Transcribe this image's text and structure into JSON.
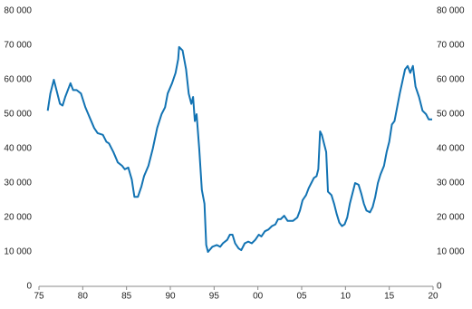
{
  "chart_data": {
    "type": "line",
    "x": [
      1976.0,
      1976.3,
      1976.7,
      1977.0,
      1977.4,
      1977.7,
      1978.0,
      1978.6,
      1978.9,
      1979.3,
      1979.8,
      1980.3,
      1980.8,
      1981.3,
      1981.7,
      1982.3,
      1982.7,
      1983.0,
      1983.5,
      1984.0,
      1984.5,
      1984.8,
      1985.2,
      1985.6,
      1985.9,
      1986.3,
      1986.7,
      1987.0,
      1987.5,
      1988.0,
      1988.5,
      1989.0,
      1989.4,
      1989.7,
      1990.2,
      1990.6,
      1990.9,
      1991.0,
      1991.4,
      1991.8,
      1992.1,
      1992.4,
      1992.6,
      1992.8,
      1993.0,
      1993.3,
      1993.6,
      1993.9,
      1994.1,
      1994.3,
      1994.8,
      1995.3,
      1995.7,
      1996.0,
      1996.5,
      1996.8,
      1997.1,
      1997.4,
      1997.8,
      1998.1,
      1998.5,
      1998.9,
      1999.3,
      1999.7,
      2000.1,
      2000.4,
      2000.8,
      2001.2,
      2001.6,
      2002.0,
      2002.3,
      2002.6,
      2003.0,
      2003.4,
      2004.0,
      2004.5,
      2004.8,
      2005.1,
      2005.5,
      2005.8,
      2006.1,
      2006.4,
      2006.7,
      2006.9,
      2007.1,
      2007.3,
      2007.6,
      2007.8,
      2008.0,
      2008.4,
      2008.7,
      2009.0,
      2009.3,
      2009.6,
      2009.9,
      2010.2,
      2010.5,
      2010.8,
      2011.1,
      2011.5,
      2011.8,
      2012.1,
      2012.4,
      2012.8,
      2013.1,
      2013.4,
      2013.7,
      2014.0,
      2014.4,
      2014.7,
      2015.0,
      2015.3,
      2015.6,
      2015.9,
      2016.2,
      2016.5,
      2016.8,
      2017.1,
      2017.4,
      2017.7,
      2018.0,
      2018.4,
      2018.8,
      2019.2,
      2019.5,
      2019.9
    ],
    "series": [
      {
        "color": "#1273b3",
        "values": [
          51000,
          56000,
          60000,
          57000,
          53000,
          52500,
          55000,
          59000,
          57000,
          57000,
          56000,
          52000,
          49000,
          46000,
          44500,
          44000,
          42000,
          41500,
          39000,
          36000,
          35000,
          34000,
          34500,
          31000,
          26000,
          26000,
          29000,
          32000,
          35000,
          40000,
          46000,
          50000,
          52000,
          56000,
          59000,
          62000,
          66000,
          69500,
          68500,
          63000,
          56000,
          53000,
          55000,
          48000,
          50000,
          40000,
          28000,
          24000,
          12000,
          10000,
          11500,
          12000,
          11500,
          12500,
          13500,
          15000,
          15000,
          12500,
          11000,
          10500,
          12500,
          13000,
          12500,
          13500,
          15000,
          14500,
          16000,
          16500,
          17500,
          18000,
          19500,
          19500,
          20500,
          19000,
          19000,
          20000,
          22000,
          25000,
          26500,
          28500,
          30000,
          31500,
          32000,
          34000,
          45000,
          44000,
          41000,
          39000,
          27500,
          26500,
          24000,
          21000,
          18500,
          17500,
          18000,
          20000,
          24000,
          27000,
          30000,
          29500,
          27000,
          24000,
          22000,
          21500,
          23000,
          26000,
          30000,
          32500,
          35000,
          39000,
          42000,
          47000,
          48000,
          52000,
          56000,
          59500,
          63000,
          64000,
          62000,
          64000,
          58000,
          55000,
          51000,
          50000,
          48500,
          48500
        ]
      }
    ],
    "xlim": [
      1975,
      2020
    ],
    "xticks": [
      {
        "value": 1975,
        "label": "75"
      },
      {
        "value": 1980,
        "label": "80"
      },
      {
        "value": 1985,
        "label": "85"
      },
      {
        "value": 1990,
        "label": "90"
      },
      {
        "value": 1995,
        "label": "95"
      },
      {
        "value": 2000,
        "label": "00"
      },
      {
        "value": 2005,
        "label": "05"
      },
      {
        "value": 2010,
        "label": "10"
      },
      {
        "value": 2015,
        "label": "15"
      },
      {
        "value": 2020,
        "label": "20"
      }
    ],
    "ylim": [
      0,
      80000
    ],
    "yticks": [
      0,
      {
        "value": 10000,
        "label": "10 000"
      },
      {
        "value": 20000,
        "label": "20 000"
      },
      {
        "value": 30000,
        "label": "30 000"
      },
      {
        "value": 40000,
        "label": "40 000"
      },
      {
        "value": 50000,
        "label": "50 000"
      },
      {
        "value": 60000,
        "label": "60 000"
      },
      {
        "value": 70000,
        "label": "70 000"
      },
      {
        "value": 80000,
        "label": "80 000"
      }
    ],
    "y2lim": [
      0,
      80000
    ],
    "y2ticks": [
      0,
      {
        "value": 10000,
        "label": "10 000"
      },
      {
        "value": 20000,
        "label": "20 000"
      },
      {
        "value": 30000,
        "label": "30 000"
      },
      {
        "value": 40000,
        "label": "40 000"
      },
      {
        "value": 50000,
        "label": "50 000"
      },
      {
        "value": 60000,
        "label": "60 000"
      },
      {
        "value": 70000,
        "label": "70 000"
      },
      {
        "value": 80000,
        "label": "80 000"
      }
    ]
  }
}
